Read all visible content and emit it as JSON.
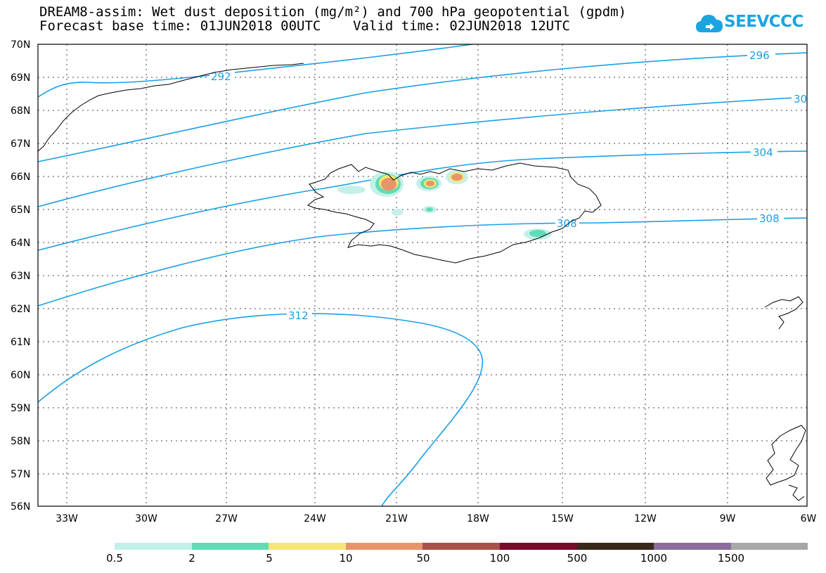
{
  "title": {
    "line1": "DREAM8-assim: Wet dust deposition (mg/m²) and 700 hPa geopotential (gpdm)",
    "line2": "Forecast base time: 01JUN2018 00UTC    Valid time: 02JUN2018 12UTC"
  },
  "logo": {
    "text": "SEEVCCC",
    "icon": "cloud-icon",
    "color": "#1ca4e0"
  },
  "map": {
    "lat_labels": [
      "70N",
      "69N",
      "68N",
      "67N",
      "66N",
      "65N",
      "64N",
      "63N",
      "62N",
      "61N",
      "60N",
      "59N",
      "58N",
      "57N",
      "56N"
    ],
    "lon_labels": [
      "33W",
      "30W",
      "27W",
      "24W",
      "21W",
      "18W",
      "15W",
      "12W",
      "9W",
      "6W"
    ],
    "lat_range": [
      56,
      70
    ],
    "lon_range": [
      -34,
      -6
    ],
    "grid": "dotted",
    "contour_color": "#1aa0e8",
    "contour_labels": [
      "292",
      "296",
      "30",
      "304",
      "308",
      "308",
      "312"
    ]
  },
  "legend": {
    "labels": [
      "0.5",
      "2",
      "5",
      "10",
      "50",
      "100",
      "500",
      "1000",
      "1500"
    ],
    "colors": [
      "#c4f0ea",
      "#5fdcb4",
      "#f5e678",
      "#e8946a",
      "#a9504a",
      "#7a0a2a",
      "#3a2818",
      "#8c6c9c",
      "#a8a8a8"
    ]
  }
}
